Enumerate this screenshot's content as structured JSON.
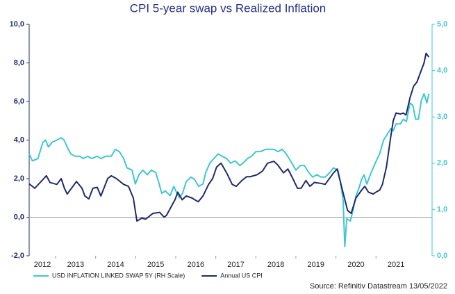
{
  "chart_data": {
    "type": "line",
    "title": "CPI 5-year swap vs Realized Inflation",
    "source": "Source: Refinitiv Datastream 13/05/2022",
    "xlim": [
      2012.34,
      2022.4
    ],
    "xticks": [
      2012,
      2013,
      2014,
      2015,
      2016,
      2017,
      2018,
      2019,
      2020,
      2021
    ],
    "ylim": [
      -2,
      10
    ],
    "yticks": [
      {
        "value": -2,
        "label": "-2,0"
      },
      {
        "value": 0,
        "label": "0,0"
      },
      {
        "value": 2,
        "label": "2,0"
      },
      {
        "value": 4,
        "label": "4,0"
      },
      {
        "value": 6,
        "label": "6,0"
      },
      {
        "value": 8,
        "label": "8,0"
      },
      {
        "value": 10,
        "label": "10,0"
      }
    ],
    "y2lim": [
      0,
      5
    ],
    "y2ticks": [
      {
        "value": 0,
        "label": "0,0"
      },
      {
        "value": 1,
        "label": "1,0"
      },
      {
        "value": 2,
        "label": "2,0"
      },
      {
        "value": 3,
        "label": "3,0"
      },
      {
        "value": 4,
        "label": "4,0"
      },
      {
        "value": 5,
        "label": "5,0"
      }
    ],
    "legend": "bottom-left",
    "series": [
      {
        "name": "USD INFLATION LINKED SWAP 5Y (RH Scale)",
        "color": "#3ec8d0",
        "axis": "y2",
        "x": [
          2012.34,
          2012.42,
          2012.56,
          2012.68,
          2012.75,
          2012.82,
          2012.91,
          2013.03,
          2013.14,
          2013.21,
          2013.29,
          2013.38,
          2013.48,
          2013.6,
          2013.69,
          2013.8,
          2013.9,
          2014.04,
          2014.13,
          2014.25,
          2014.39,
          2014.49,
          2014.59,
          2014.7,
          2014.78,
          2014.91,
          2014.99,
          2015.08,
          2015.18,
          2015.29,
          2015.39,
          2015.5,
          2015.57,
          2015.65,
          2015.74,
          2015.86,
          2015.95,
          2016.03,
          2016.09,
          2016.17,
          2016.26,
          2016.38,
          2016.47,
          2016.57,
          2016.68,
          2016.75,
          2016.85,
          2016.95,
          2017.06,
          2017.16,
          2017.27,
          2017.37,
          2017.48,
          2017.6,
          2017.68,
          2017.79,
          2017.89,
          2018.0,
          2018.12,
          2018.24,
          2018.34,
          2018.45,
          2018.55,
          2018.66,
          2018.76,
          2018.9,
          2019.0,
          2019.11,
          2019.21,
          2019.32,
          2019.42,
          2019.52,
          2019.63,
          2019.73,
          2019.85,
          2019.94,
          2020.05,
          2020.11,
          2020.18,
          2020.22,
          2020.27,
          2020.36,
          2020.43,
          2020.5,
          2020.57,
          2020.64,
          2020.7,
          2020.77,
          2020.88,
          2020.98,
          2021.09,
          2021.19,
          2021.3,
          2021.37,
          2021.43,
          2021.5,
          2021.61,
          2021.68,
          2021.76,
          2021.85,
          2021.92,
          2021.99,
          2022.06,
          2022.13,
          2022.2,
          2022.27,
          2022.32
        ],
        "values": [
          2.2,
          2.05,
          2.1,
          2.45,
          2.5,
          2.35,
          2.45,
          2.5,
          2.55,
          2.5,
          2.35,
          2.2,
          2.15,
          2.15,
          2.1,
          2.15,
          2.1,
          2.15,
          2.1,
          2.15,
          2.15,
          2.3,
          2.25,
          2.1,
          1.9,
          1.85,
          1.55,
          1.75,
          1.85,
          1.75,
          1.85,
          1.8,
          1.6,
          1.35,
          1.4,
          1.3,
          1.5,
          1.35,
          1.25,
          1.35,
          1.6,
          1.7,
          1.65,
          1.5,
          1.55,
          1.8,
          2.0,
          2.1,
          2.2,
          2.15,
          2.1,
          2.0,
          2.05,
          1.95,
          2.0,
          2.1,
          2.15,
          2.25,
          2.25,
          2.3,
          2.3,
          2.3,
          2.25,
          2.3,
          2.2,
          2.0,
          1.85,
          1.95,
          1.95,
          1.8,
          1.7,
          1.75,
          1.7,
          1.7,
          1.8,
          1.9,
          1.85,
          1.6,
          1.2,
          0.2,
          0.8,
          0.75,
          1.0,
          1.3,
          1.45,
          1.65,
          1.75,
          1.55,
          1.8,
          2.0,
          2.2,
          2.5,
          2.65,
          2.75,
          2.7,
          2.85,
          2.85,
          2.95,
          2.9,
          3.3,
          3.25,
          2.95,
          2.95,
          3.35,
          3.5,
          3.3,
          3.5
        ]
      },
      {
        "name": "Annual US CPI",
        "color": "#1f2a6b",
        "axis": "y",
        "x": [
          2012.34,
          2012.48,
          2012.77,
          2012.86,
          2013.03,
          2013.14,
          2013.22,
          2013.29,
          2013.52,
          2013.66,
          2013.73,
          2013.83,
          2013.93,
          2014.04,
          2014.13,
          2014.3,
          2014.39,
          2014.52,
          2014.7,
          2014.82,
          2014.94,
          2015.03,
          2015.15,
          2015.25,
          2015.43,
          2015.6,
          2015.71,
          2015.77,
          2015.9,
          2015.98,
          2016.05,
          2016.16,
          2016.26,
          2016.4,
          2016.56,
          2016.68,
          2016.82,
          2016.92,
          2017.02,
          2017.13,
          2017.27,
          2017.41,
          2017.51,
          2017.65,
          2017.77,
          2017.86,
          2018.03,
          2018.17,
          2018.29,
          2018.45,
          2018.55,
          2018.69,
          2018.8,
          2018.9,
          2019.04,
          2019.13,
          2019.25,
          2019.35,
          2019.46,
          2019.63,
          2019.73,
          2019.94,
          2020.03,
          2020.15,
          2020.29,
          2020.38,
          2020.5,
          2020.64,
          2020.72,
          2020.81,
          2020.93,
          2021.0,
          2021.09,
          2021.16,
          2021.26,
          2021.37,
          2021.43,
          2021.5,
          2021.61,
          2021.68,
          2021.75,
          2021.85,
          2021.94,
          2022.02,
          2022.11,
          2022.2,
          2022.25,
          2022.32
        ],
        "values": [
          1.73,
          1.5,
          2.15,
          1.8,
          1.7,
          2.0,
          1.5,
          1.2,
          1.85,
          1.5,
          1.1,
          0.95,
          1.5,
          1.55,
          1.1,
          2.0,
          2.15,
          2.0,
          1.7,
          1.6,
          1.0,
          -0.2,
          -0.05,
          -0.1,
          0.2,
          0.25,
          0.0,
          0.1,
          0.6,
          0.9,
          1.3,
          0.9,
          1.1,
          1.0,
          0.8,
          1.1,
          1.7,
          2.0,
          2.6,
          2.8,
          2.3,
          1.7,
          1.6,
          1.9,
          2.1,
          2.1,
          2.2,
          2.4,
          2.8,
          2.9,
          2.7,
          2.3,
          2.5,
          2.1,
          1.5,
          1.5,
          1.9,
          1.6,
          1.8,
          1.75,
          1.7,
          2.3,
          2.5,
          1.5,
          0.35,
          0.2,
          1.0,
          1.4,
          1.6,
          1.3,
          1.2,
          1.3,
          1.4,
          1.7,
          2.6,
          4.2,
          5.0,
          5.4,
          5.35,
          5.4,
          5.3,
          6.2,
          6.8,
          7.0,
          7.5,
          8.0,
          8.5,
          8.3
        ]
      }
    ]
  }
}
